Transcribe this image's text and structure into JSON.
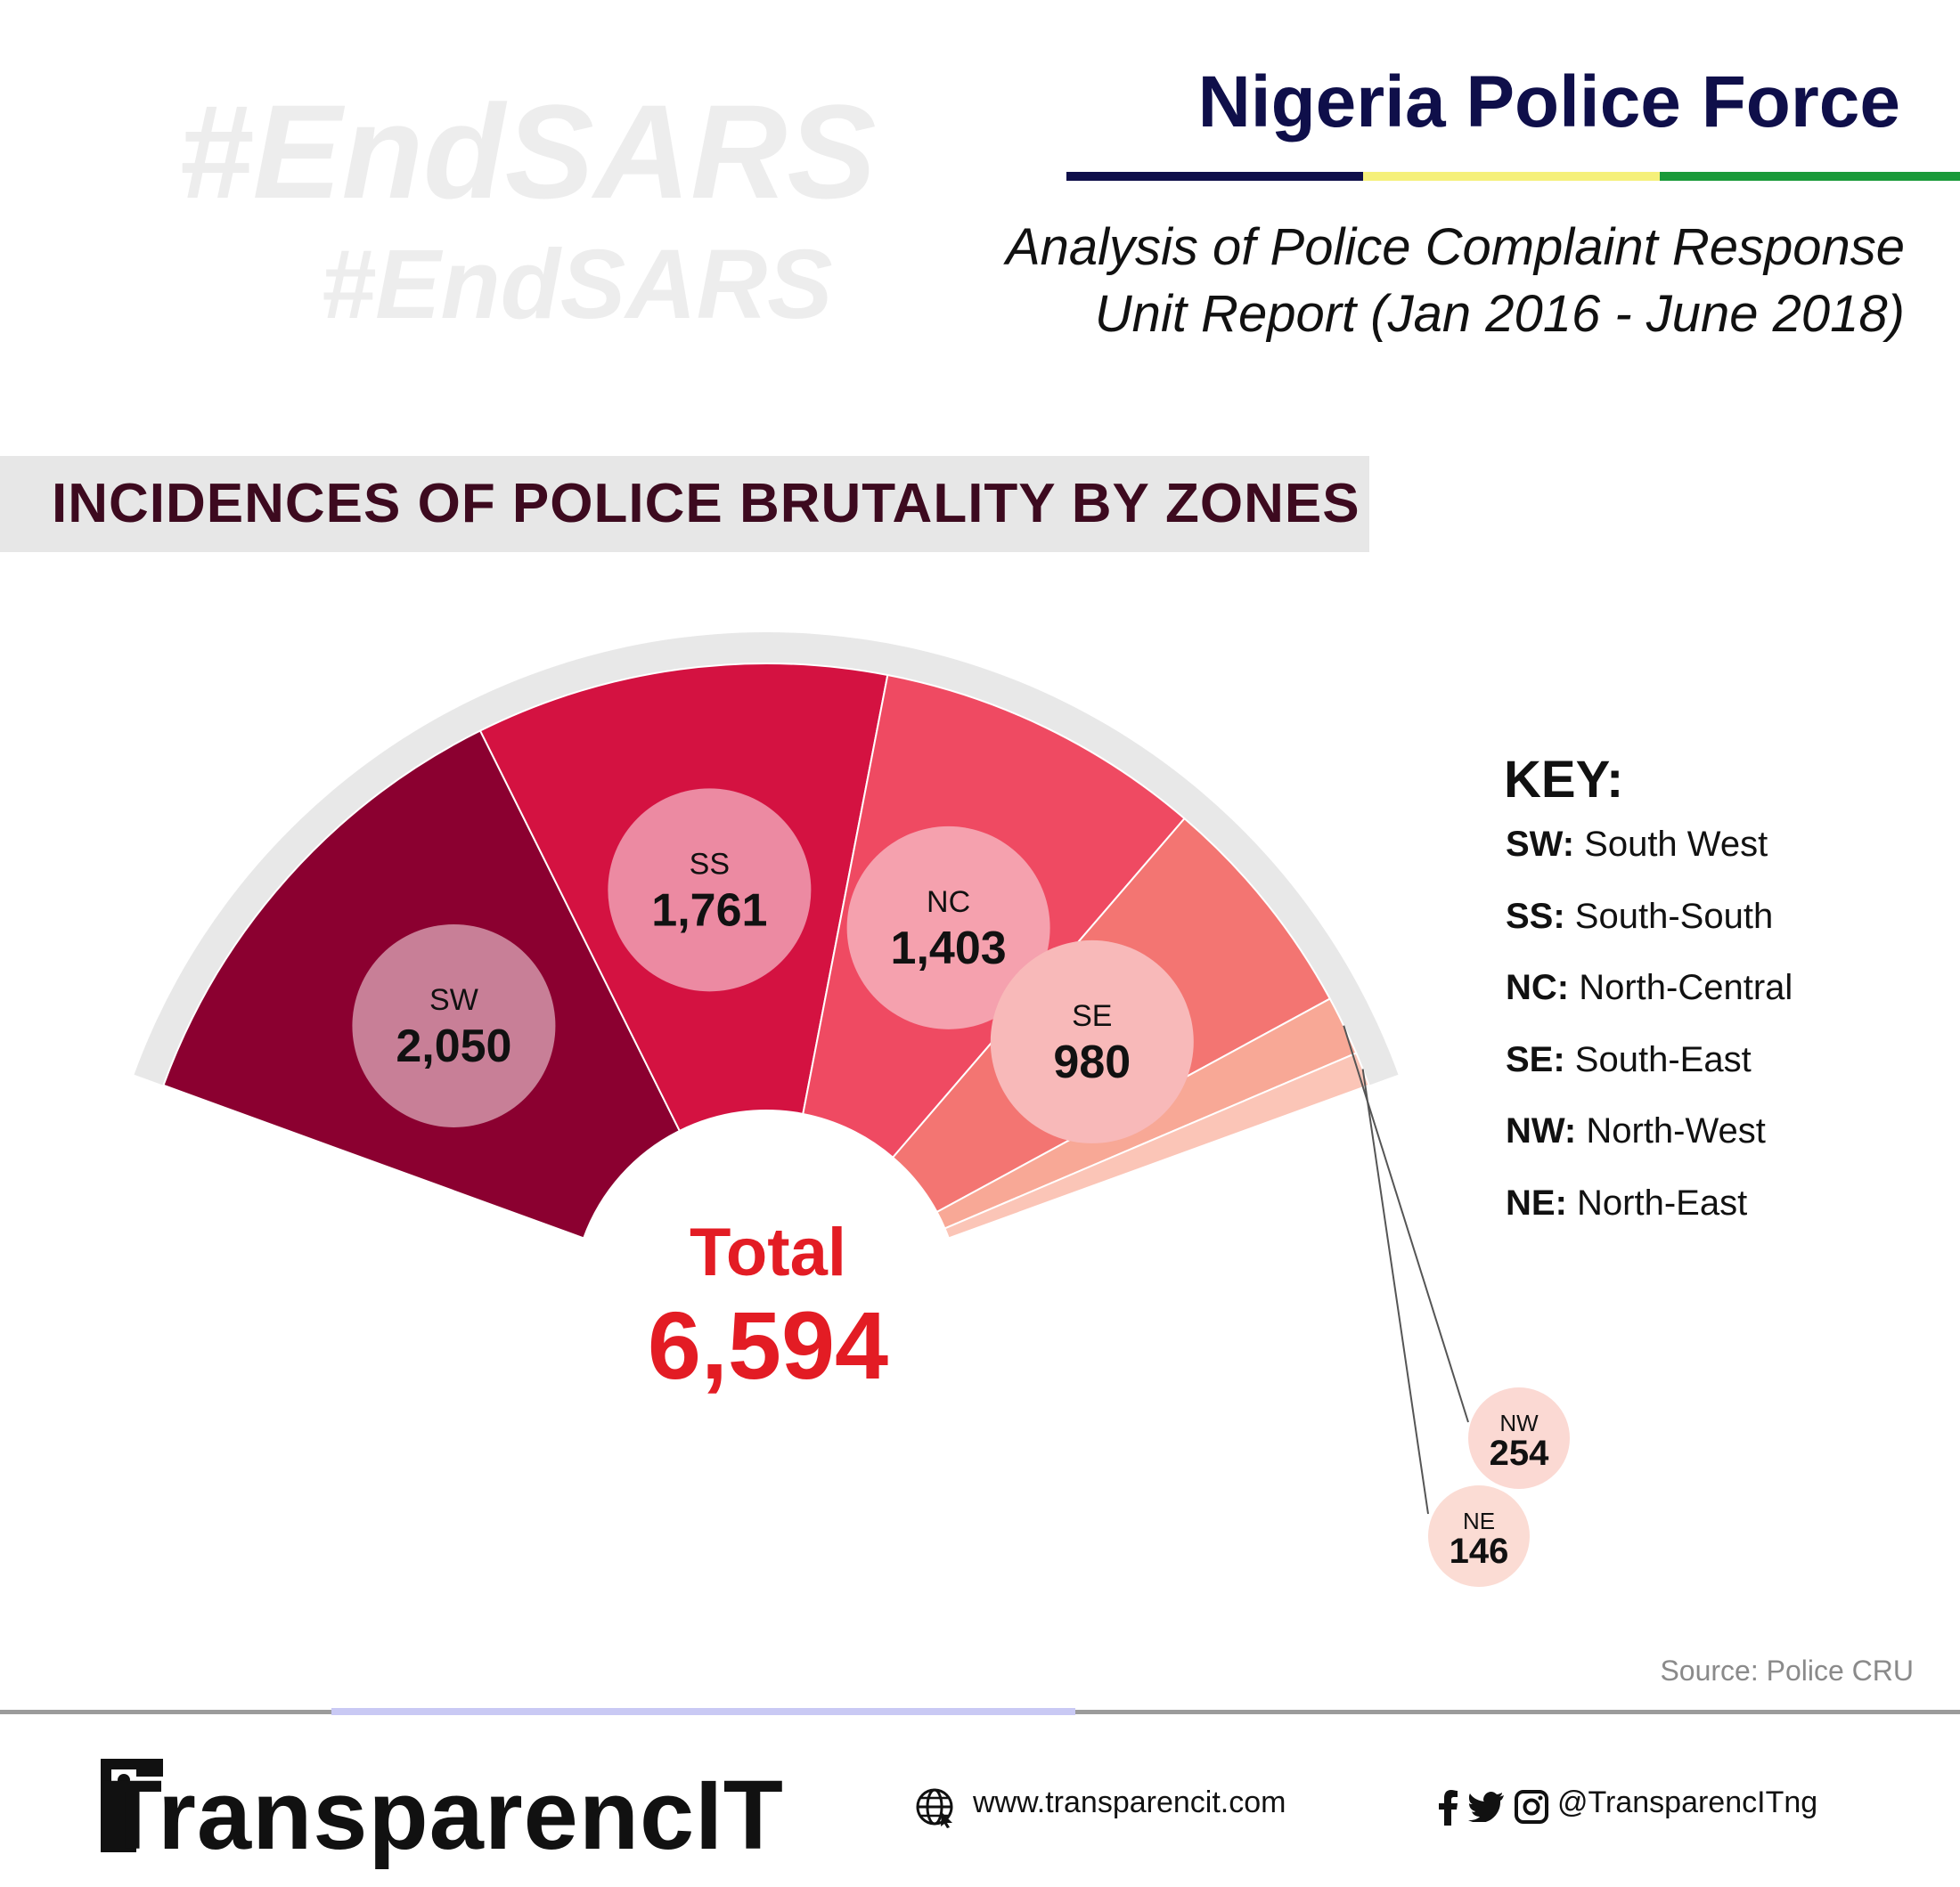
{
  "watermark": {
    "line1": "#EndSARS",
    "line2": "#EndSARS"
  },
  "header": {
    "title": "Nigeria Police Force",
    "subtitle_line1": "Analysis of Police Complaint Response",
    "subtitle_line2": "Unit Report (Jan 2016 - June 2018)",
    "flag_colors": [
      "#0f0f4a",
      "#f5f07a",
      "#1a9a3a"
    ]
  },
  "section_title": "INCIDENCES OF POLICE BRUTALITY BY ZONES",
  "chart_data": {
    "type": "pie",
    "subtype": "half-donut",
    "title": "INCIDENCES OF POLICE BRUTALITY BY ZONES",
    "center_label": "Total",
    "total": "6,594",
    "total_value": 6594,
    "slices": [
      {
        "label": "SW",
        "value": 2050,
        "value_label": "2,050",
        "color": "#8b0030",
        "badge_color": "#c87f97",
        "label_color": "#111111"
      },
      {
        "label": "SS",
        "value": 1761,
        "value_label": "1,761",
        "color": "#d41241",
        "badge_color": "#ec8aa2",
        "label_color": "#111111"
      },
      {
        "label": "NC",
        "value": 1403,
        "value_label": "1,403",
        "color": "#ef4a62",
        "badge_color": "#f5a1ae",
        "label_color": "#111111"
      },
      {
        "label": "SE",
        "value": 980,
        "value_label": "980",
        "color": "#f37572",
        "badge_color": "#f8b9b9",
        "label_color": "#111111"
      },
      {
        "label": "NW",
        "value": 254,
        "value_label": "254",
        "color": "#f8a896",
        "badge_color": "#fbd9d3",
        "label_color": "#111111"
      },
      {
        "label": "NE",
        "value": 146,
        "value_label": "146",
        "color": "#fbc5b7",
        "badge_color": "#fbdcd4",
        "label_color": "#111111"
      }
    ],
    "legend_placement": "right"
  },
  "key": {
    "title": "KEY:",
    "items": [
      {
        "code": "SW:",
        "name": "South West"
      },
      {
        "code": "SS:",
        "name": "South-South"
      },
      {
        "code": "NC:",
        "name": "North-Central"
      },
      {
        "code": "SE:",
        "name": "South-East"
      },
      {
        "code": "NW:",
        "name": "North-West"
      },
      {
        "code": "NE:",
        "name": "North-East"
      }
    ]
  },
  "source": "Source: Police CRU",
  "footer": {
    "logo_text": "TransparencIT",
    "website": "www.transparencit.com",
    "social_handle": "@TransparencITng",
    "icons": [
      "globe-icon",
      "facebook-icon",
      "twitter-icon",
      "instagram-icon"
    ]
  }
}
